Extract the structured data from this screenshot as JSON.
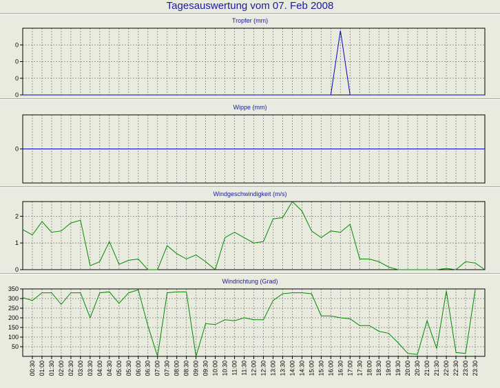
{
  "title": "Tagesauswertung vom 07. Feb 2008",
  "colors": {
    "background": "#e9ebdf",
    "title": "#1a1aa0",
    "blue_series": "#0000cc",
    "green_series": "#008800",
    "grid": "#808080"
  },
  "time_labels": [
    "00:30",
    "01:00",
    "01:30",
    "02:00",
    "02:30",
    "03:00",
    "03:30",
    "04:00",
    "04:30",
    "05:00",
    "05:30",
    "06:00",
    "06:30",
    "07:00",
    "07:30",
    "08:00",
    "08:30",
    "09:00",
    "09:30",
    "10:00",
    "10:30",
    "11:00",
    "11:30",
    "12:00",
    "12:30",
    "13:00",
    "13:30",
    "14:00",
    "14:30",
    "15:00",
    "15:30",
    "16:00",
    "16:30",
    "17:00",
    "17:30",
    "18:00",
    "18:30",
    "19:00",
    "19:30",
    "20:00",
    "20:30",
    "21:00",
    "21:30",
    "22:00",
    "22:30",
    "23:00",
    "23:30"
  ],
  "chart_data": [
    {
      "type": "line",
      "title": "Tropfer (mm)",
      "color": "#0000cc",
      "ylim": [
        0,
        0.4
      ],
      "yticks": [
        0,
        0.1,
        0.2,
        0.3
      ],
      "ytick_labels": [
        "0",
        "0",
        "0",
        "0"
      ],
      "grid": true,
      "values": [
        0,
        0,
        0,
        0,
        0,
        0,
        0,
        0,
        0,
        0,
        0,
        0,
        0,
        0,
        0,
        0,
        0,
        0,
        0,
        0,
        0,
        0,
        0,
        0,
        0,
        0,
        0,
        0,
        0,
        0,
        0,
        0,
        0,
        0.385,
        0,
        0,
        0,
        0,
        0,
        0,
        0,
        0,
        0,
        0,
        0,
        0,
        0,
        0,
        0
      ]
    },
    {
      "type": "line",
      "title": "Wippe (mm)",
      "color": "#0000cc",
      "ylim": [
        -1,
        1
      ],
      "yticks": [
        0
      ],
      "ytick_labels": [
        "0"
      ],
      "grid": true,
      "values": [
        0,
        0,
        0,
        0,
        0,
        0,
        0,
        0,
        0,
        0,
        0,
        0,
        0,
        0,
        0,
        0,
        0,
        0,
        0,
        0,
        0,
        0,
        0,
        0,
        0,
        0,
        0,
        0,
        0,
        0,
        0,
        0,
        0,
        0,
        0,
        0,
        0,
        0,
        0,
        0,
        0,
        0,
        0,
        0,
        0,
        0,
        0,
        0,
        0
      ]
    },
    {
      "type": "line",
      "title": "Windgeschwindigkeit (m/s)",
      "color": "#008800",
      "ylim": [
        0,
        2.55
      ],
      "yticks": [
        0,
        1,
        2
      ],
      "ytick_labels": [
        "0",
        "1",
        "2"
      ],
      "grid": true,
      "values": [
        1.5,
        1.3,
        1.8,
        1.4,
        1.45,
        1.75,
        1.85,
        0.15,
        0.3,
        1.05,
        0.2,
        0.35,
        0.4,
        0.0,
        0.0,
        0.9,
        0.6,
        0.4,
        0.55,
        0.3,
        0.0,
        1.2,
        1.4,
        1.2,
        1.0,
        1.05,
        1.9,
        1.95,
        2.55,
        2.2,
        1.45,
        1.2,
        1.45,
        1.4,
        1.7,
        0.4,
        0.4,
        0.3,
        0.1,
        0.0,
        0.0,
        0.0,
        0.0,
        0.0,
        0.05,
        0.0,
        0.3,
        0.25,
        0.0
      ]
    },
    {
      "type": "line",
      "title": "Windrichtung (Grad)",
      "color": "#008800",
      "ylim": [
        0,
        350
      ],
      "yticks": [
        50,
        100,
        150,
        200,
        250,
        300,
        350
      ],
      "ytick_labels": [
        "50",
        "100",
        "150",
        "200",
        "250",
        "300",
        "350"
      ],
      "grid": true,
      "values": [
        305,
        290,
        330,
        330,
        270,
        330,
        330,
        200,
        330,
        335,
        275,
        330,
        345,
        160,
        0,
        330,
        335,
        335,
        0,
        170,
        165,
        190,
        185,
        200,
        190,
        190,
        290,
        325,
        330,
        330,
        325,
        210,
        210,
        200,
        195,
        160,
        160,
        130,
        120,
        70,
        15,
        10,
        185,
        40,
        340,
        20,
        15,
        345
      ]
    }
  ]
}
